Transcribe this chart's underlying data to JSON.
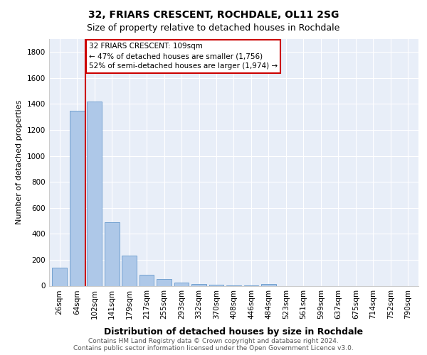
{
  "title1": "32, FRIARS CRESCENT, ROCHDALE, OL11 2SG",
  "title2": "Size of property relative to detached houses in Rochdale",
  "xlabel": "Distribution of detached houses by size in Rochdale",
  "ylabel": "Number of detached properties",
  "footnote1": "Contains HM Land Registry data © Crown copyright and database right 2024.",
  "footnote2": "Contains public sector information licensed under the Open Government Licence v3.0.",
  "annotation_line1": "32 FRIARS CRESCENT: 109sqm",
  "annotation_line2": "← 47% of detached houses are smaller (1,756)",
  "annotation_line3": "52% of semi-detached houses are larger (1,974) →",
  "bar_color": "#aec8e8",
  "vline_color": "#cc0000",
  "categories": [
    "26sqm",
    "64sqm",
    "102sqm",
    "141sqm",
    "179sqm",
    "217sqm",
    "255sqm",
    "293sqm",
    "332sqm",
    "370sqm",
    "408sqm",
    "446sqm",
    "484sqm",
    "523sqm",
    "561sqm",
    "599sqm",
    "637sqm",
    "675sqm",
    "714sqm",
    "752sqm",
    "790sqm"
  ],
  "values": [
    140,
    1350,
    1420,
    490,
    230,
    85,
    50,
    25,
    15,
    8,
    5,
    3,
    15,
    0,
    0,
    0,
    0,
    0,
    0,
    0,
    0
  ],
  "ylim": [
    0,
    1900
  ],
  "yticks": [
    0,
    200,
    400,
    600,
    800,
    1000,
    1200,
    1400,
    1600,
    1800
  ],
  "vline_x": 1.5,
  "bg_color": "#e8eef8",
  "grid_color": "#ffffff",
  "title1_fontsize": 10,
  "title2_fontsize": 9,
  "ylabel_fontsize": 8,
  "xlabel_fontsize": 9,
  "tick_fontsize": 7.5,
  "annot_fontsize": 7.5,
  "footnote_fontsize": 6.5
}
